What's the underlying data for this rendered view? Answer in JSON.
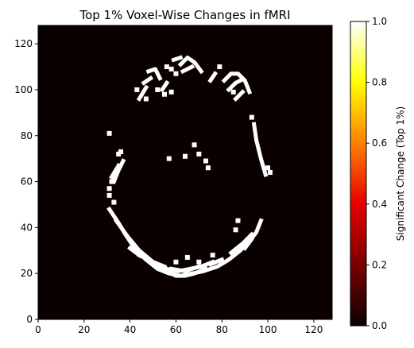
{
  "chart_data": {
    "type": "heatmap",
    "title": "Top 1% Voxel-Wise Changes in fMRI",
    "xlabel": "",
    "ylabel": "",
    "xlim": [
      0,
      128
    ],
    "ylim": [
      0,
      128
    ],
    "x_ticks": [
      0,
      20,
      40,
      60,
      80,
      100,
      120
    ],
    "y_ticks": [
      0,
      20,
      40,
      60,
      80,
      100,
      120
    ],
    "grid": false,
    "background_value": 0,
    "mask_value": 1,
    "colormap": "hot",
    "colormap_stops": [
      "#0b0000",
      "#7a0000",
      "#e60000",
      "#ff8000",
      "#ffff00",
      "#ffffff"
    ],
    "colorbar": {
      "label": "Significant Change (Top 1%)",
      "range": [
        0,
        1
      ],
      "ticks": [
        "0.0",
        "0.2",
        "0.4",
        "0.6",
        "0.8",
        "1.0"
      ],
      "placement": "right"
    },
    "mask_polylines": [
      [
        [
          31,
          48
        ],
        [
          35,
          42
        ],
        [
          38,
          37
        ],
        [
          42,
          31
        ],
        [
          47,
          26
        ],
        [
          52,
          22
        ],
        [
          57,
          20
        ],
        [
          62,
          19
        ],
        [
          67,
          20
        ],
        [
          72,
          21
        ],
        [
          78,
          23
        ],
        [
          83,
          26
        ],
        [
          88,
          30
        ],
        [
          92,
          34
        ],
        [
          95,
          38
        ],
        [
          97,
          43
        ]
      ],
      [
        [
          34,
          43
        ],
        [
          39,
          36
        ],
        [
          44,
          30
        ],
        [
          50,
          25
        ],
        [
          56,
          22
        ],
        [
          61,
          21
        ],
        [
          66,
          22
        ],
        [
          71,
          23
        ],
        [
          76,
          25
        ]
      ],
      [
        [
          56,
          21
        ],
        [
          60,
          19
        ],
        [
          64,
          19
        ],
        [
          68,
          20
        ],
        [
          73,
          22
        ]
      ],
      [
        [
          58,
          22
        ],
        [
          64,
          21
        ],
        [
          70,
          23
        ]
      ],
      [
        [
          44,
          28
        ],
        [
          50,
          25
        ],
        [
          55,
          23
        ]
      ],
      [
        [
          84,
          29
        ],
        [
          89,
          33
        ],
        [
          93,
          37
        ]
      ],
      [
        [
          40,
          31
        ],
        [
          44,
          28
        ]
      ],
      [
        [
          47,
          26
        ],
        [
          51,
          23
        ]
      ],
      [
        [
          75,
          24
        ],
        [
          80,
          26
        ]
      ],
      [
        [
          90,
          31
        ],
        [
          93,
          35
        ]
      ],
      [
        [
          52,
          23
        ],
        [
          56,
          21
        ]
      ],
      [
        [
          94,
          85
        ],
        [
          95,
          78
        ],
        [
          97,
          70
        ],
        [
          99,
          63
        ]
      ],
      [
        [
          33,
          60
        ],
        [
          35,
          65
        ],
        [
          37,
          69
        ]
      ],
      [
        [
          32,
          62
        ],
        [
          35,
          67
        ]
      ],
      [
        [
          48,
          108
        ],
        [
          51,
          109
        ],
        [
          53,
          105
        ]
      ],
      [
        [
          46,
          103
        ],
        [
          49,
          105
        ]
      ],
      [
        [
          62,
          111
        ],
        [
          65,
          114
        ],
        [
          68,
          112
        ],
        [
          71,
          108
        ]
      ],
      [
        [
          63,
          108
        ],
        [
          67,
          110
        ]
      ],
      [
        [
          59,
          113
        ],
        [
          62,
          114
        ]
      ],
      [
        [
          81,
          104
        ],
        [
          84,
          107
        ],
        [
          87,
          107
        ],
        [
          90,
          104
        ],
        [
          92,
          99
        ]
      ],
      [
        [
          83,
          100
        ],
        [
          86,
          103
        ],
        [
          88,
          104
        ]
      ],
      [
        [
          44,
          96
        ],
        [
          47,
          101
        ]
      ],
      [
        [
          54,
          100
        ],
        [
          56,
          103
        ]
      ],
      [
        [
          75,
          104
        ],
        [
          77,
          107
        ]
      ],
      [
        [
          86,
          96
        ],
        [
          89,
          99
        ]
      ]
    ],
    "mask_points": [
      [
        31,
        54
      ],
      [
        31,
        57
      ],
      [
        32,
        60
      ],
      [
        33,
        51
      ],
      [
        31,
        81
      ],
      [
        55,
        98
      ],
      [
        58,
        99
      ],
      [
        60,
        107
      ],
      [
        47,
        96
      ],
      [
        57,
        70
      ],
      [
        64,
        71
      ],
      [
        68,
        76
      ],
      [
        70,
        72
      ],
      [
        73,
        69
      ],
      [
        74,
        66
      ],
      [
        100,
        66
      ],
      [
        101,
        64
      ],
      [
        60,
        25
      ],
      [
        70,
        25
      ],
      [
        76,
        28
      ],
      [
        65,
        27
      ],
      [
        52,
        100
      ],
      [
        79,
        110
      ],
      [
        85,
        99
      ],
      [
        93,
        88
      ],
      [
        35,
        72
      ],
      [
        36,
        73
      ],
      [
        86,
        39
      ],
      [
        87,
        43
      ],
      [
        58,
        109
      ],
      [
        56,
        110
      ],
      [
        43,
        100
      ]
    ]
  }
}
